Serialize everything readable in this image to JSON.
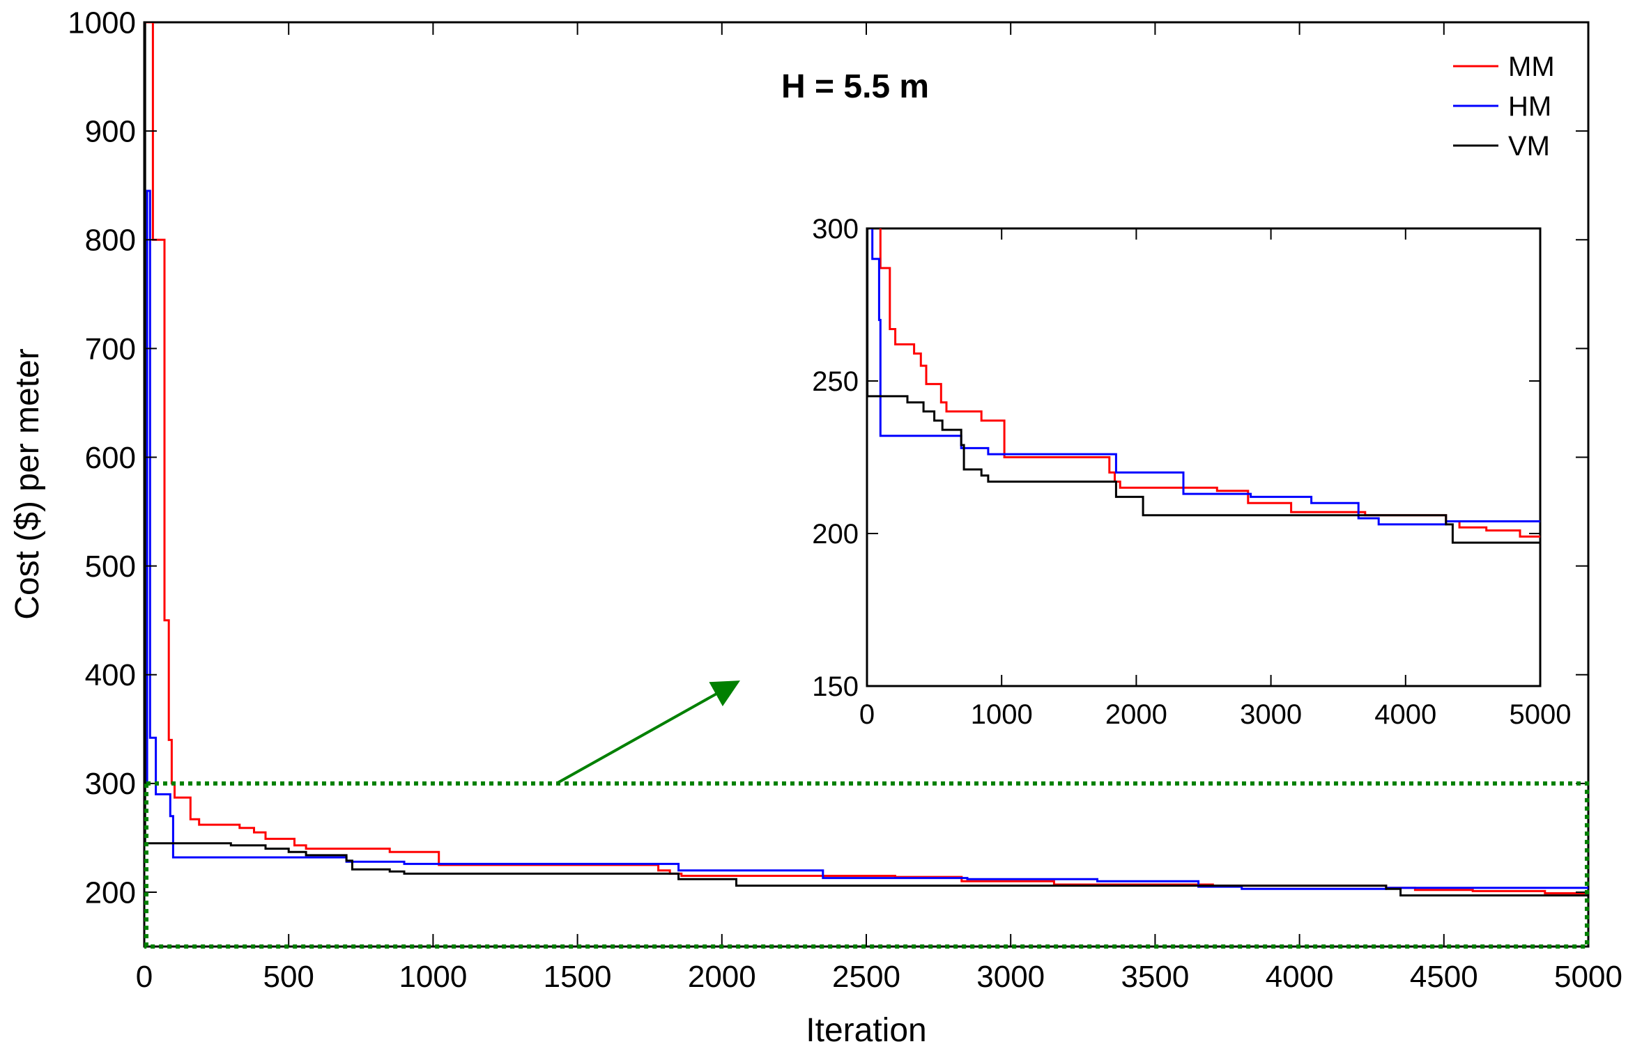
{
  "chart_data": {
    "type": "line",
    "title": "H = 5.5 m",
    "xlabel": "Iteration",
    "ylabel": "Cost ($) per meter",
    "xlim": [
      0,
      5000
    ],
    "ylim": [
      150,
      1000
    ],
    "xticks": [
      0,
      500,
      1000,
      1500,
      2000,
      2500,
      3000,
      3500,
      4000,
      4500,
      5000
    ],
    "yticks": [
      200,
      300,
      400,
      500,
      600,
      700,
      800,
      900,
      1000
    ],
    "legend": {
      "position": "top-right",
      "entries": [
        "MM",
        "HM",
        "VM"
      ]
    },
    "series": [
      {
        "name": "MM",
        "color": "#ff0000",
        "points": [
          [
            0,
            1000
          ],
          [
            30,
            1000
          ],
          [
            30,
            800
          ],
          [
            70,
            800
          ],
          [
            70,
            450
          ],
          [
            85,
            450
          ],
          [
            85,
            340
          ],
          [
            95,
            340
          ],
          [
            95,
            300
          ],
          [
            105,
            300
          ],
          [
            105,
            287
          ],
          [
            160,
            287
          ],
          [
            160,
            267
          ],
          [
            190,
            267
          ],
          [
            190,
            262
          ],
          [
            330,
            262
          ],
          [
            330,
            259
          ],
          [
            380,
            259
          ],
          [
            380,
            255
          ],
          [
            420,
            255
          ],
          [
            420,
            249
          ],
          [
            520,
            249
          ],
          [
            520,
            243
          ],
          [
            560,
            243
          ],
          [
            560,
            240
          ],
          [
            850,
            240
          ],
          [
            850,
            237
          ],
          [
            1020,
            237
          ],
          [
            1020,
            225
          ],
          [
            1780,
            225
          ],
          [
            1780,
            220
          ],
          [
            1820,
            220
          ],
          [
            1820,
            217
          ],
          [
            1860,
            217
          ],
          [
            1860,
            215
          ],
          [
            2600,
            215
          ],
          [
            2600,
            214
          ],
          [
            2830,
            214
          ],
          [
            2830,
            210
          ],
          [
            3150,
            210
          ],
          [
            3150,
            207
          ],
          [
            3700,
            207
          ],
          [
            3700,
            206
          ],
          [
            4300,
            206
          ],
          [
            4300,
            204
          ],
          [
            4400,
            204
          ],
          [
            4400,
            202
          ],
          [
            4600,
            202
          ],
          [
            4600,
            201
          ],
          [
            4850,
            201
          ],
          [
            4850,
            199
          ],
          [
            5000,
            199
          ]
        ]
      },
      {
        "name": "HM",
        "color": "#0000ff",
        "points": [
          [
            0,
            300
          ],
          [
            10,
            300
          ],
          [
            10,
            845
          ],
          [
            20,
            845
          ],
          [
            20,
            342
          ],
          [
            40,
            342
          ],
          [
            40,
            290
          ],
          [
            90,
            290
          ],
          [
            90,
            270
          ],
          [
            100,
            270
          ],
          [
            100,
            232
          ],
          [
            700,
            232
          ],
          [
            700,
            228
          ],
          [
            900,
            228
          ],
          [
            900,
            226
          ],
          [
            1850,
            226
          ],
          [
            1850,
            220
          ],
          [
            2350,
            220
          ],
          [
            2350,
            213
          ],
          [
            2850,
            213
          ],
          [
            2850,
            212
          ],
          [
            3300,
            212
          ],
          [
            3300,
            210
          ],
          [
            3650,
            210
          ],
          [
            3650,
            205
          ],
          [
            3800,
            205
          ],
          [
            3800,
            203
          ],
          [
            4300,
            203
          ],
          [
            4300,
            204
          ],
          [
            5000,
            204
          ]
        ]
      },
      {
        "name": "VM",
        "color": "#000000",
        "points": [
          [
            0,
            1000
          ],
          [
            3,
            1000
          ],
          [
            3,
            245
          ],
          [
            300,
            245
          ],
          [
            300,
            243
          ],
          [
            420,
            243
          ],
          [
            420,
            240
          ],
          [
            500,
            240
          ],
          [
            500,
            237
          ],
          [
            560,
            237
          ],
          [
            560,
            234
          ],
          [
            700,
            234
          ],
          [
            700,
            229
          ],
          [
            720,
            229
          ],
          [
            720,
            221
          ],
          [
            850,
            221
          ],
          [
            850,
            219
          ],
          [
            900,
            219
          ],
          [
            900,
            217
          ],
          [
            1850,
            217
          ],
          [
            1850,
            212
          ],
          [
            2050,
            212
          ],
          [
            2050,
            206
          ],
          [
            4300,
            206
          ],
          [
            4300,
            203
          ],
          [
            4350,
            203
          ],
          [
            4350,
            197
          ],
          [
            5000,
            197
          ]
        ]
      }
    ],
    "inset": {
      "xlim": [
        0,
        5000
      ],
      "ylim": [
        150,
        300
      ],
      "xticks": [
        0,
        1000,
        2000,
        3000,
        4000,
        5000
      ],
      "yticks": [
        150,
        200,
        250,
        300
      ],
      "series": [
        {
          "name": "MM",
          "color": "#ff0000",
          "points": [
            [
              100,
              300
            ],
            [
              100,
              287
            ],
            [
              170,
              287
            ],
            [
              170,
              267
            ],
            [
              210,
              267
            ],
            [
              210,
              262
            ],
            [
              350,
              262
            ],
            [
              350,
              259
            ],
            [
              400,
              259
            ],
            [
              400,
              255
            ],
            [
              440,
              255
            ],
            [
              440,
              249
            ],
            [
              550,
              249
            ],
            [
              550,
              243
            ],
            [
              590,
              243
            ],
            [
              590,
              240
            ],
            [
              850,
              240
            ],
            [
              850,
              237
            ],
            [
              1020,
              237
            ],
            [
              1020,
              225
            ],
            [
              1800,
              225
            ],
            [
              1800,
              220
            ],
            [
              1840,
              220
            ],
            [
              1840,
              217
            ],
            [
              1880,
              217
            ],
            [
              1880,
              215
            ],
            [
              2600,
              215
            ],
            [
              2600,
              214
            ],
            [
              2830,
              214
            ],
            [
              2830,
              210
            ],
            [
              3150,
              210
            ],
            [
              3150,
              207
            ],
            [
              3700,
              207
            ],
            [
              3700,
              206
            ],
            [
              4300,
              206
            ],
            [
              4300,
              204
            ],
            [
              4400,
              204
            ],
            [
              4400,
              202
            ],
            [
              4600,
              202
            ],
            [
              4600,
              201
            ],
            [
              4850,
              201
            ],
            [
              4850,
              199
            ],
            [
              5000,
              199
            ]
          ]
        },
        {
          "name": "HM",
          "color": "#0000ff",
          "points": [
            [
              20,
              300
            ],
            [
              40,
              300
            ],
            [
              40,
              290
            ],
            [
              90,
              290
            ],
            [
              90,
              270
            ],
            [
              100,
              270
            ],
            [
              100,
              232
            ],
            [
              700,
              232
            ],
            [
              700,
              228
            ],
            [
              900,
              228
            ],
            [
              900,
              226
            ],
            [
              1850,
              226
            ],
            [
              1850,
              220
            ],
            [
              2350,
              220
            ],
            [
              2350,
              213
            ],
            [
              2850,
              213
            ],
            [
              2850,
              212
            ],
            [
              3300,
              212
            ],
            [
              3300,
              210
            ],
            [
              3650,
              210
            ],
            [
              3650,
              205
            ],
            [
              3800,
              205
            ],
            [
              3800,
              203
            ],
            [
              4300,
              203
            ],
            [
              4300,
              204
            ],
            [
              5000,
              204
            ]
          ]
        },
        {
          "name": "VM",
          "color": "#000000",
          "points": [
            [
              3,
              300
            ],
            [
              3,
              245
            ],
            [
              300,
              245
            ],
            [
              300,
              243
            ],
            [
              420,
              243
            ],
            [
              420,
              240
            ],
            [
              500,
              240
            ],
            [
              500,
              237
            ],
            [
              560,
              237
            ],
            [
              560,
              234
            ],
            [
              700,
              234
            ],
            [
              700,
              229
            ],
            [
              720,
              229
            ],
            [
              720,
              221
            ],
            [
              850,
              221
            ],
            [
              850,
              219
            ],
            [
              900,
              219
            ],
            [
              900,
              217
            ],
            [
              1850,
              217
            ],
            [
              1850,
              212
            ],
            [
              2050,
              212
            ],
            [
              2050,
              206
            ],
            [
              4300,
              206
            ],
            [
              4300,
              203
            ],
            [
              4350,
              203
            ],
            [
              4350,
              197
            ],
            [
              5000,
              197
            ]
          ]
        }
      ]
    },
    "zoom_box": {
      "xrange": [
        0,
        5000
      ],
      "yrange": [
        150,
        300
      ],
      "color": "#008000"
    }
  }
}
